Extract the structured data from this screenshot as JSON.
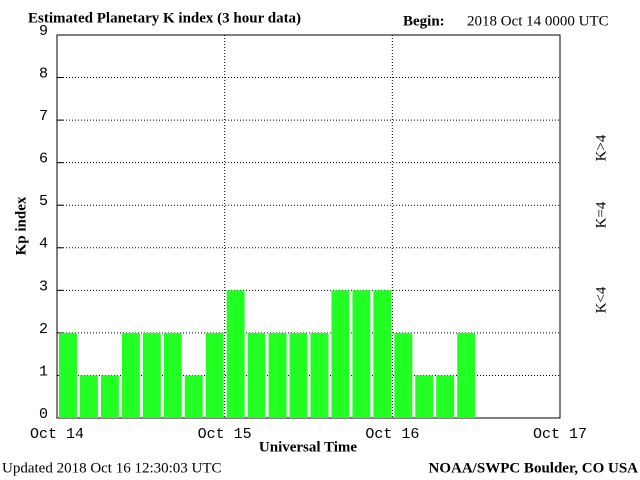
{
  "chart_data": {
    "type": "bar",
    "title": "Estimated Planetary K index (3 hour data)",
    "begin_label": "Begin:",
    "begin": "2018 Oct 14 0000 UTC",
    "x_label": "Universal Time",
    "y_label": "Kp index",
    "xticks": [
      "Oct 14",
      "Oct 15",
      "Oct 16",
      "Oct 17"
    ],
    "values": [
      2,
      1,
      1,
      2,
      2,
      2,
      1,
      2,
      3,
      2,
      2,
      2,
      2,
      3,
      3,
      3,
      2,
      1,
      1,
      2
    ],
    "color": "#22ff22",
    "ylim": [
      0,
      9
    ],
    "yticks": [
      0,
      1,
      2,
      3,
      4,
      5,
      6,
      7,
      8,
      9
    ],
    "grid": true,
    "legend": [
      {
        "name": "K<4",
        "color": "#33ee33"
      },
      {
        "name": "K=4",
        "color": "#ffcc00"
      },
      {
        "name": "K>4",
        "color": "#ff3311"
      }
    ],
    "updated": "Updated 2018 Oct 16 12:30:03 UTC",
    "source": "NOAA/SWPC Boulder, CO USA"
  }
}
